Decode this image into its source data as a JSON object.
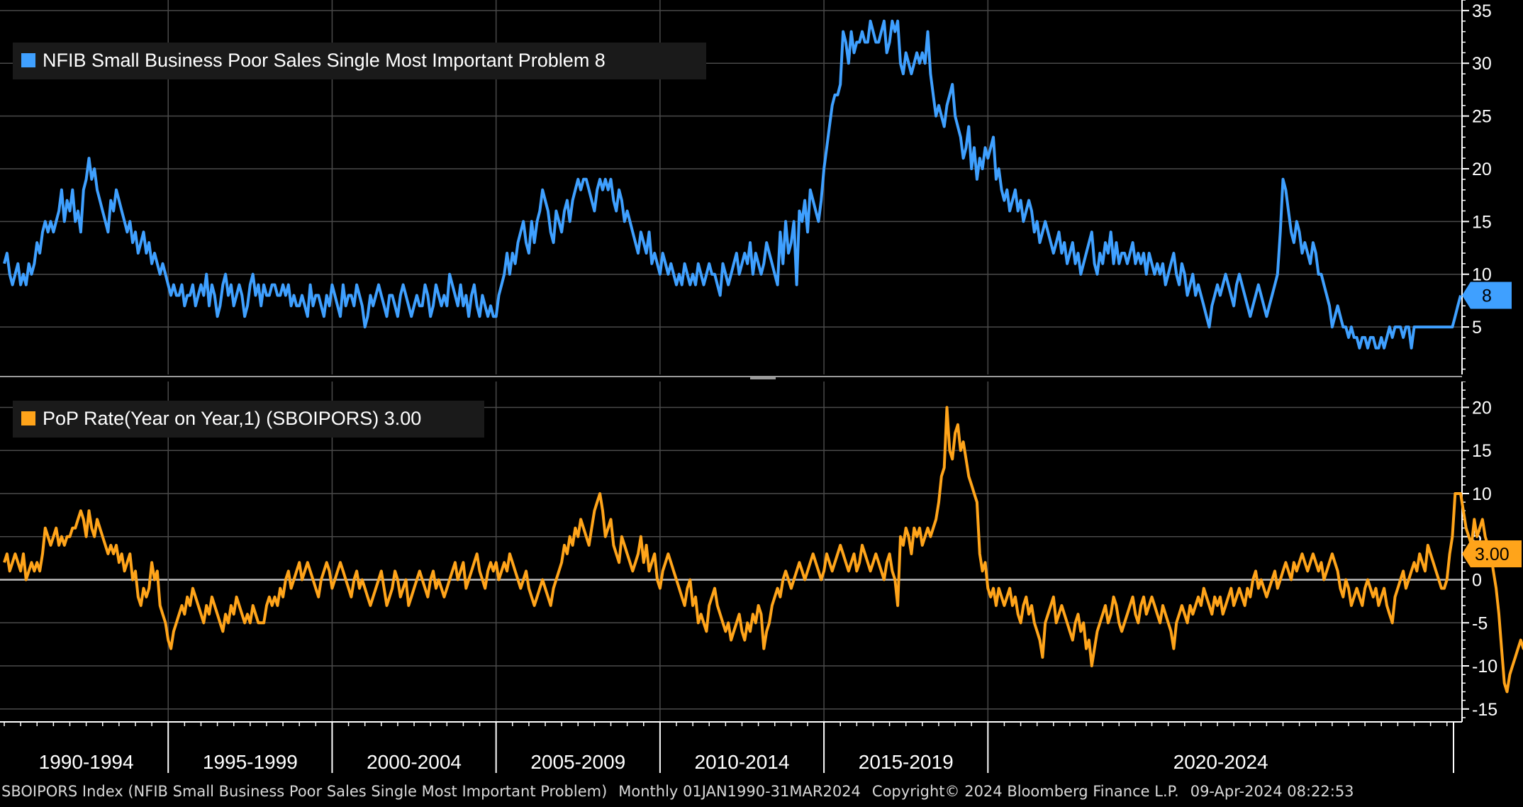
{
  "chart_data": [
    {
      "type": "line",
      "legend": "NFIB Small Business Poor Sales Single Most Important Problem 8",
      "series": [
        {
          "name": "NFIB Small Business Poor Sales Single Most Important Problem",
          "color": "#3fa0ff",
          "values": [
            11,
            12,
            10,
            9,
            10,
            11,
            9,
            10,
            9,
            11,
            10,
            11,
            13,
            12,
            14,
            15,
            14,
            15,
            14,
            15,
            16,
            18,
            15,
            17,
            16,
            18,
            15,
            16,
            14,
            18,
            19,
            21,
            19,
            20,
            18,
            17,
            16,
            15,
            14,
            17,
            16,
            18,
            17,
            16,
            15,
            14,
            15,
            13,
            14,
            12,
            13,
            14,
            12,
            13,
            11,
            12,
            11,
            10,
            11,
            10,
            9,
            8,
            9,
            8,
            8,
            9,
            7,
            8,
            8,
            9,
            7,
            8,
            9,
            8,
            10,
            7,
            9,
            8,
            6,
            7,
            9,
            10,
            8,
            9,
            7,
            8,
            9,
            8,
            6,
            7,
            9,
            10,
            8,
            9,
            7,
            9,
            8,
            8,
            9,
            9,
            8,
            8,
            9,
            8,
            9,
            7,
            8,
            7,
            7,
            8,
            7,
            6,
            9,
            7,
            8,
            8,
            7,
            6,
            8,
            7,
            9,
            8,
            7,
            6,
            9,
            7,
            8,
            8,
            7,
            9,
            8,
            7,
            5,
            6,
            8,
            7,
            8,
            9,
            8,
            7,
            6,
            8,
            8,
            7,
            6,
            8,
            9,
            8,
            7,
            6,
            7,
            8,
            7,
            7,
            9,
            8,
            6,
            7,
            9,
            8,
            7,
            8,
            7,
            10,
            9,
            8,
            7,
            9,
            7,
            8,
            6,
            8,
            9,
            7,
            6,
            8,
            7,
            6,
            7,
            6,
            6,
            8,
            9,
            10,
            12,
            10,
            12,
            11,
            13,
            14,
            15,
            13,
            12,
            15,
            13,
            15,
            16,
            18,
            17,
            16,
            14,
            13,
            16,
            15,
            14,
            16,
            17,
            15,
            17,
            18,
            19,
            18,
            19,
            19,
            18,
            17,
            16,
            18,
            19,
            18,
            19,
            18,
            19,
            17,
            16,
            18,
            17,
            15,
            16,
            15,
            14,
            13,
            12,
            14,
            13,
            12,
            14,
            11,
            12,
            11,
            10,
            12,
            11,
            10,
            11,
            10,
            9,
            10,
            9,
            11,
            10,
            9,
            10,
            9,
            11,
            10,
            9,
            10,
            11,
            10,
            10,
            9,
            8,
            11,
            10,
            9,
            10,
            11,
            12,
            10,
            11,
            12,
            11,
            13,
            10,
            12,
            11,
            10,
            11,
            13,
            12,
            11,
            10,
            9,
            14,
            11,
            15,
            12,
            13,
            15,
            9,
            16,
            15,
            17,
            14,
            18,
            17,
            16,
            15,
            17,
            20,
            22,
            24,
            26,
            27,
            27,
            28,
            33,
            32,
            30,
            33,
            31,
            32,
            32,
            33,
            32,
            32,
            34,
            33,
            32,
            32,
            33,
            34,
            31,
            32,
            34,
            33,
            34,
            30,
            29,
            31,
            30,
            29,
            30,
            31,
            30,
            31,
            30,
            33,
            29,
            27,
            25,
            26,
            25,
            24,
            26,
            27,
            28,
            25,
            24,
            23,
            21,
            22,
            24,
            20,
            22,
            19,
            21,
            20,
            22,
            21,
            22,
            23,
            19,
            20,
            18,
            17,
            18,
            16,
            17,
            18,
            16,
            17,
            15,
            16,
            17,
            16,
            14,
            15,
            13,
            14,
            15,
            14,
            13,
            12,
            13,
            14,
            12,
            13,
            11,
            12,
            13,
            11,
            12,
            10,
            11,
            12,
            13,
            14,
            11,
            10,
            12,
            11,
            13,
            12,
            14,
            11,
            13,
            11,
            12,
            12,
            11,
            12,
            13,
            11,
            12,
            11,
            12,
            10,
            12,
            11,
            10,
            11,
            10,
            11,
            9,
            10,
            11,
            12,
            10,
            9,
            11,
            10,
            8,
            9,
            10,
            8,
            9,
            8,
            7,
            6,
            5,
            7,
            8,
            9,
            8,
            9,
            10,
            9,
            8,
            7,
            9,
            10,
            9,
            8,
            7,
            6,
            7,
            8,
            9,
            8,
            7,
            6,
            7,
            8,
            9,
            10,
            14,
            19,
            18,
            16,
            14,
            13,
            15,
            14,
            12,
            13,
            12,
            11,
            13,
            12,
            10,
            10,
            9,
            8,
            7,
            5,
            6,
            7,
            6,
            5,
            5,
            4,
            5,
            4,
            4,
            3,
            4,
            4,
            3,
            4,
            4,
            3,
            3,
            4,
            3,
            4,
            5,
            4,
            5,
            5,
            5,
            4,
            5,
            5,
            3,
            5,
            5,
            5,
            5,
            5,
            5,
            5,
            5,
            5,
            5,
            5,
            5,
            5,
            5,
            5,
            6,
            7,
            8
          ]
        }
      ],
      "x_start": "1990-01",
      "y_ticks": [
        5,
        10,
        15,
        20,
        25,
        30,
        35
      ],
      "ylim": [
        0.5,
        36
      ],
      "last_value_label": "8"
    },
    {
      "type": "line",
      "legend": "PoP Rate(Year on Year,1) (SBOIPORS) 3.00",
      "series": [
        {
          "name": "PoP Rate(Year on Year,1) (SBOIPORS)",
          "color": "#ffa41a",
          "values": [
            2,
            3,
            1,
            2,
            3,
            2,
            1,
            3,
            0,
            1,
            2,
            1,
            2,
            1,
            3,
            6,
            5,
            4,
            5,
            6,
            4,
            5,
            4,
            5,
            5,
            6,
            6,
            7,
            8,
            7,
            5,
            8,
            6,
            5,
            7,
            6,
            5,
            4,
            3,
            4,
            3,
            4,
            2,
            3,
            1,
            2,
            3,
            0,
            1,
            -2,
            -3,
            -1,
            -2,
            -1,
            2,
            0,
            1,
            -3,
            -4,
            -5,
            -7,
            -8,
            -6,
            -5,
            -4,
            -3,
            -4,
            -2,
            -3,
            -1,
            -2,
            -3,
            -4,
            -5,
            -3,
            -4,
            -2,
            -3,
            -4,
            -5,
            -6,
            -4,
            -5,
            -3,
            -4,
            -2,
            -3,
            -4,
            -5,
            -4,
            -5,
            -3,
            -4,
            -5,
            -5,
            -5,
            -3,
            -2,
            -3,
            -2,
            -3,
            -1,
            -2,
            0,
            1,
            -1,
            0,
            1,
            2,
            0,
            1,
            2,
            1,
            0,
            -1,
            -2,
            0,
            1,
            2,
            1,
            -1,
            0,
            1,
            2,
            1,
            0,
            -1,
            -2,
            0,
            1,
            -1,
            0,
            -1,
            -2,
            -3,
            -2,
            -1,
            0,
            1,
            -1,
            -3,
            -2,
            -1,
            1,
            0,
            -2,
            -1,
            0,
            -3,
            -2,
            -1,
            0,
            1,
            0,
            -1,
            -2,
            0,
            1,
            -1,
            0,
            -1,
            -2,
            -1,
            0,
            1,
            2,
            0,
            1,
            2,
            -1,
            0,
            1,
            2,
            3,
            1,
            0,
            -1,
            1,
            2,
            1,
            2,
            0,
            1,
            2,
            1,
            3,
            2,
            1,
            0,
            -1,
            0,
            1,
            -1,
            -2,
            -3,
            -2,
            -1,
            0,
            -1,
            -2,
            -3,
            -1,
            0,
            1,
            2,
            4,
            3,
            5,
            4,
            6,
            5,
            7,
            6,
            5,
            4,
            6,
            8,
            9,
            10,
            8,
            5,
            6,
            7,
            4,
            3,
            2,
            5,
            4,
            3,
            2,
            1,
            2,
            3,
            5,
            2,
            4,
            1,
            2,
            3,
            0,
            -1,
            1,
            2,
            3,
            2,
            1,
            0,
            -1,
            -2,
            -3,
            -1,
            0,
            -3,
            -2,
            -5,
            -4,
            -5,
            -6,
            -3,
            -2,
            -1,
            -3,
            -4,
            -5,
            -6,
            -5,
            -7,
            -6,
            -5,
            -4,
            -6,
            -7,
            -5,
            -6,
            -4,
            -5,
            -3,
            -4,
            -8,
            -6,
            -5,
            -3,
            -2,
            -1,
            -2,
            0,
            1,
            0,
            -1,
            0,
            1,
            2,
            1,
            0,
            1,
            2,
            3,
            2,
            1,
            0,
            1,
            3,
            2,
            1,
            2,
            3,
            4,
            3,
            2,
            1,
            2,
            3,
            1,
            2,
            4,
            3,
            2,
            1,
            2,
            3,
            2,
            1,
            0,
            2,
            3,
            1,
            0,
            -3,
            5,
            4,
            6,
            5,
            3,
            6,
            5,
            6,
            4,
            5,
            6,
            5,
            6,
            7,
            9,
            12,
            13,
            20,
            15,
            14,
            17,
            18,
            15,
            16,
            14,
            12,
            11,
            10,
            9,
            3,
            1,
            2,
            -1,
            -2,
            -1,
            -3,
            -1,
            -2,
            -3,
            -2,
            -1,
            -3,
            -2,
            -4,
            -5,
            -3,
            -2,
            -4,
            -3,
            -5,
            -6,
            -7,
            -9,
            -5,
            -4,
            -3,
            -2,
            -5,
            -4,
            -3,
            -4,
            -5,
            -6,
            -7,
            -5,
            -4,
            -6,
            -5,
            -8,
            -7,
            -10,
            -8,
            -6,
            -5,
            -4,
            -3,
            -5,
            -4,
            -2,
            -3,
            -5,
            -6,
            -5,
            -4,
            -3,
            -2,
            -4,
            -5,
            -3,
            -2,
            -4,
            -3,
            -2,
            -3,
            -4,
            -5,
            -3,
            -4,
            -5,
            -6,
            -8,
            -5,
            -4,
            -3,
            -4,
            -5,
            -3,
            -4,
            -3,
            -2,
            -3,
            -1,
            -2,
            -3,
            -4,
            -2,
            -3,
            -2,
            -4,
            -3,
            -2,
            -1,
            -3,
            -2,
            -1,
            -2,
            -3,
            -1,
            -2,
            0,
            1,
            -1,
            0,
            -1,
            -2,
            -1,
            0,
            1,
            -1,
            0,
            1,
            2,
            1,
            0,
            2,
            1,
            2,
            3,
            2,
            1,
            2,
            3,
            2,
            1,
            2,
            0,
            1,
            2,
            3,
            2,
            1,
            -1,
            -2,
            0,
            -1,
            -3,
            -2,
            -1,
            -2,
            -3,
            -1,
            0,
            -1,
            -2,
            -1,
            -3,
            -2,
            -1,
            -3,
            -4,
            -5,
            -2,
            -1,
            0,
            1,
            -1,
            0,
            1,
            2,
            1,
            3,
            2,
            1,
            4,
            3,
            2,
            1,
            0,
            -1,
            -1,
            0,
            3,
            5,
            10,
            10,
            10,
            8,
            6,
            5,
            4,
            7,
            5,
            6,
            7,
            5,
            4,
            3,
            1,
            -1,
            -4,
            -8,
            -12,
            -13,
            -11,
            -10,
            -9,
            -8,
            -7,
            -8,
            -8,
            -8,
            -7,
            -8,
            -7,
            -7,
            -7,
            -7,
            -7,
            -7,
            -6,
            -5,
            -3,
            -1,
            -2,
            -1,
            -1,
            -2,
            -1,
            -1,
            0,
            -1,
            -1,
            0,
            -1,
            0,
            0,
            1,
            1,
            2,
            1,
            0,
            1,
            2,
            1,
            2,
            1,
            2,
            2,
            2,
            1,
            1,
            2,
            3,
            3,
            3
          ]
        }
      ],
      "x_start": "1990-01",
      "y_ticks": [
        -15,
        -10,
        -5,
        0,
        5,
        10,
        15,
        20
      ],
      "ylim": [
        -16.5,
        23
      ],
      "last_value_label": "3.00"
    }
  ],
  "x_axis_labels": [
    "1990-1994",
    "1995-1999",
    "2000-2004",
    "2005-2009",
    "2010-2014",
    "2015-2019",
    "2020-2024"
  ],
  "footer": {
    "index_desc": "SBOIPORS Index (NFIB Small Business Poor Sales Single Most Important Problem)",
    "range": "Monthly 01JAN1990-31MAR2024",
    "copyright": "Copyright© 2024 Bloomberg Finance L.P.",
    "stamp": "09-Apr-2024 08:22:53"
  },
  "colors": {
    "background": "#000000",
    "grid": "#4a4a4a",
    "axis": "#ffffff",
    "blue": "#3fa0ff",
    "orange": "#ffa41a"
  }
}
